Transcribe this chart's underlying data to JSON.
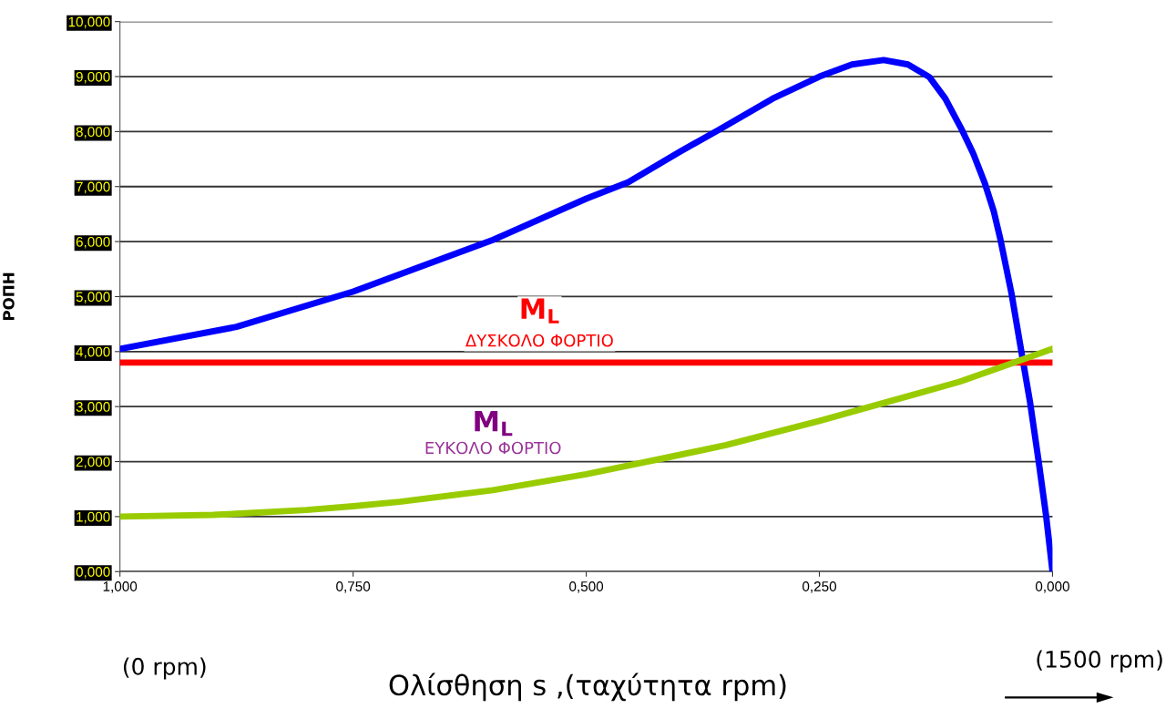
{
  "chart_data": {
    "type": "line",
    "xlabel": "Ολίσθηση s ,(ταχύτητα rpm)",
    "ylabel": "ΡΟΠΗ",
    "xlim": [
      1,
      0
    ],
    "ylim": [
      0,
      10
    ],
    "xticks": [
      {
        "value": 1,
        "label": "1,000"
      },
      {
        "value": 0.75,
        "label": "0,750"
      },
      {
        "value": 0.5,
        "label": "0,500"
      },
      {
        "value": 0.25,
        "label": "0,250"
      },
      {
        "value": 0,
        "label": "0,000"
      }
    ],
    "yticks": [
      {
        "value": 0,
        "label": "0,000"
      },
      {
        "value": 1,
        "label": "1,000"
      },
      {
        "value": 2,
        "label": "2,000"
      },
      {
        "value": 3,
        "label": "3,000"
      },
      {
        "value": 4,
        "label": "4,000"
      },
      {
        "value": 5,
        "label": "5,000"
      },
      {
        "value": 6,
        "label": "6,000"
      },
      {
        "value": 7,
        "label": "7,000"
      },
      {
        "value": 8,
        "label": "8,000"
      },
      {
        "value": 9,
        "label": "9,000"
      },
      {
        "value": 10,
        "label": "10,000"
      }
    ],
    "grid": "y",
    "series": [
      {
        "color": "#0000ff",
        "x": [
          1,
          0.875,
          0.75,
          0.6,
          0.5,
          0.455,
          0.4,
          0.357,
          0.3,
          0.25,
          0.215,
          0.181,
          0.155,
          0.132,
          0.115,
          0.098,
          0.085,
          0.073,
          0.063,
          0.056,
          0.044,
          0.034,
          0.024,
          0.015,
          0.007,
          0
        ],
        "values": [
          4.05,
          4.45,
          5.09,
          6.03,
          6.78,
          7.08,
          7.63,
          8.04,
          8.6,
          9.0,
          9.22,
          9.3,
          9.22,
          8.99,
          8.6,
          8.06,
          7.6,
          7.08,
          6.55,
          6.05,
          5.06,
          4.06,
          3.07,
          2.02,
          1.03,
          0
        ]
      },
      {
        "name": "M$_{L}$\nΔΥΣΚΟΛΟ ΦΟΡΤΙΟ",
        "color": "#ff0000",
        "x": [
          1,
          0
        ],
        "values": [
          3.8,
          3.8
        ]
      },
      {
        "name": "M$_{L}$\nΕΥΚΟΛΟ ΦΟΡΤΙΟ",
        "color": "#99cc00",
        "x": [
          1,
          0.9,
          0.8,
          0.75,
          0.7,
          0.6,
          0.5,
          0.42,
          0.35,
          0.25,
          0.18,
          0.1,
          0.05,
          0
        ],
        "values": [
          1.0,
          1.03,
          1.12,
          1.19,
          1.27,
          1.48,
          1.77,
          2.05,
          2.3,
          2.74,
          3.07,
          3.45,
          3.75,
          4.05
        ]
      }
    ],
    "annotations": [
      "(0 rpm)",
      "(1500 rpm)"
    ]
  }
}
